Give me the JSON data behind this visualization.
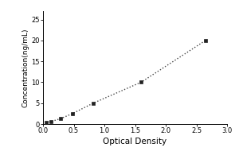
{
  "x_data": [
    0.05,
    0.13,
    0.28,
    0.48,
    0.82,
    1.6,
    2.65
  ],
  "y_data": [
    0.3,
    0.6,
    1.25,
    2.5,
    5.0,
    10.0,
    20.0
  ],
  "xlabel": "Optical Density",
  "ylabel": "Concentration(ng/mL)",
  "xlim": [
    0,
    3
  ],
  "ylim": [
    0,
    27
  ],
  "xticks": [
    0,
    0.5,
    1,
    1.5,
    2,
    2.5,
    3
  ],
  "yticks": [
    0,
    5,
    10,
    15,
    20,
    25
  ],
  "line_color": "#444444",
  "marker_color": "#222222",
  "background_color": "#ffffff",
  "line_style": "dotted",
  "marker_style": "s",
  "marker_size": 2.5,
  "line_width": 1.0,
  "xlabel_fontsize": 7.5,
  "ylabel_fontsize": 6.5,
  "tick_fontsize": 6.0
}
